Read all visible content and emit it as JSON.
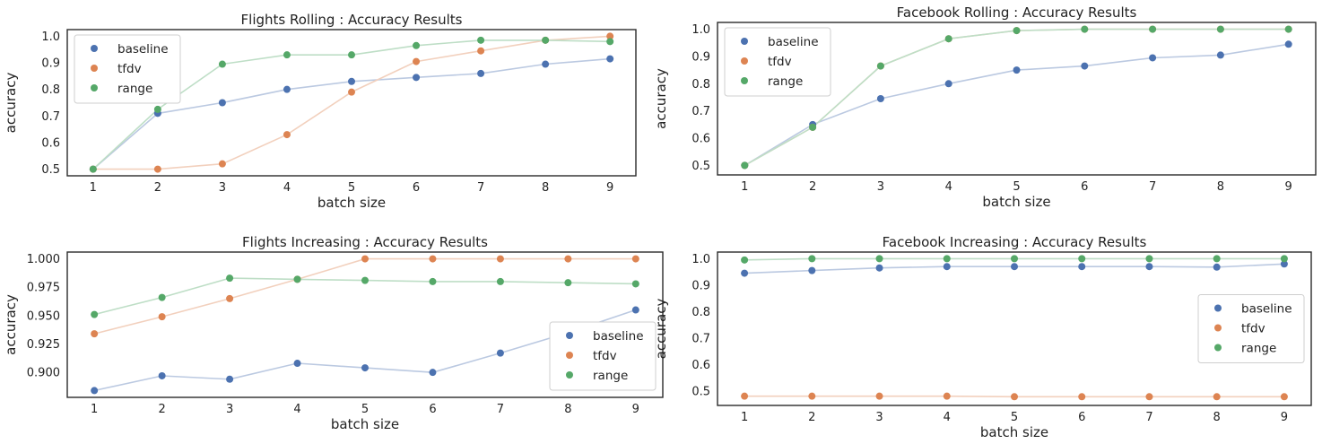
{
  "colors": {
    "baseline": "#4c72b0",
    "tfdv": "#dd8452",
    "range": "#55a868",
    "frame": "#2b2b2b"
  },
  "chart_data": [
    {
      "type": "line",
      "title": "Flights Rolling : Accuracy Results",
      "xlabel": "batch size",
      "ylabel": "accuracy",
      "x": [
        1,
        2,
        3,
        4,
        5,
        6,
        7,
        8,
        9
      ],
      "xlim": [
        0.6,
        9.4
      ],
      "ylim": [
        0.475,
        1.025
      ],
      "yticks": [
        0.5,
        0.6,
        0.7,
        0.8,
        0.9,
        1.0
      ],
      "ytick_labels": [
        "0.5",
        "0.6",
        "0.7",
        "0.8",
        "0.9",
        "1.0"
      ],
      "grid": false,
      "legend_position": "top-left",
      "series": [
        {
          "name": "baseline",
          "values": [
            0.5,
            0.71,
            0.75,
            0.8,
            0.83,
            0.845,
            0.86,
            0.895,
            0.915
          ]
        },
        {
          "name": "tfdv",
          "values": [
            0.5,
            0.5,
            0.52,
            0.63,
            0.79,
            0.905,
            0.945,
            0.985,
            1.0
          ]
        },
        {
          "name": "range",
          "values": [
            0.5,
            0.725,
            0.895,
            0.93,
            0.93,
            0.965,
            0.985,
            0.985,
            0.98
          ]
        }
      ]
    },
    {
      "type": "line",
      "title": "Facebook Rolling : Accuracy Results",
      "xlabel": "batch size",
      "ylabel": "accuracy",
      "x": [
        1,
        2,
        3,
        4,
        5,
        6,
        7,
        8,
        9
      ],
      "xlim": [
        0.6,
        9.4
      ],
      "ylim": [
        0.465,
        1.025
      ],
      "yticks": [
        0.5,
        0.6,
        0.7,
        0.8,
        0.9,
        1.0
      ],
      "ytick_labels": [
        "0.5",
        "0.6",
        "0.7",
        "0.8",
        "0.9",
        "1.0"
      ],
      "grid": false,
      "legend_position": "top-left",
      "series": [
        {
          "name": "baseline",
          "values": [
            0.5,
            0.65,
            0.745,
            0.8,
            0.85,
            0.865,
            0.895,
            0.905,
            0.945
          ]
        },
        {
          "name": "tfdv",
          "values": [
            0.5,
            0.64,
            0.865,
            0.965,
            0.995,
            1.0,
            1.0,
            1.0,
            1.0
          ]
        },
        {
          "name": "range",
          "values": [
            0.5,
            0.64,
            0.865,
            0.965,
            0.995,
            1.0,
            1.0,
            1.0,
            1.0
          ]
        }
      ]
    },
    {
      "type": "line",
      "title": "Flights Increasing : Accuracy Results",
      "xlabel": "batch size",
      "ylabel": "accuracy",
      "x": [
        1,
        2,
        3,
        4,
        5,
        6,
        7,
        8,
        9
      ],
      "xlim": [
        0.6,
        9.4
      ],
      "ylim": [
        0.878,
        1.006
      ],
      "yticks": [
        0.9,
        0.925,
        0.95,
        0.975,
        1.0
      ],
      "ytick_labels": [
        "0.900",
        "0.925",
        "0.950",
        "0.975",
        "1.000"
      ],
      "grid": false,
      "legend_position": "bottom-right",
      "series": [
        {
          "name": "baseline",
          "values": [
            0.884,
            0.897,
            0.894,
            0.908,
            0.904,
            0.9,
            0.917,
            0.935,
            0.955
          ]
        },
        {
          "name": "tfdv",
          "values": [
            0.934,
            0.949,
            0.965,
            0.982,
            1.0,
            1.0,
            1.0,
            1.0,
            1.0
          ]
        },
        {
          "name": "range",
          "values": [
            0.951,
            0.966,
            0.983,
            0.982,
            0.981,
            0.98,
            0.98,
            0.979,
            0.978
          ]
        }
      ]
    },
    {
      "type": "line",
      "title": "Facebook Increasing : Accuracy Results",
      "xlabel": "batch size",
      "ylabel": "accuracy",
      "x": [
        1,
        2,
        3,
        4,
        5,
        6,
        7,
        8,
        9
      ],
      "xlim": [
        0.6,
        9.4
      ],
      "ylim": [
        0.445,
        1.025
      ],
      "yticks": [
        0.5,
        0.6,
        0.7,
        0.8,
        0.9,
        1.0
      ],
      "ytick_labels": [
        "0.5",
        "0.6",
        "0.7",
        "0.8",
        "0.9",
        "1.0"
      ],
      "grid": false,
      "legend_position": "center-right",
      "series": [
        {
          "name": "baseline",
          "values": [
            0.945,
            0.955,
            0.965,
            0.97,
            0.97,
            0.97,
            0.97,
            0.968,
            0.98
          ]
        },
        {
          "name": "tfdv",
          "values": [
            0.48,
            0.48,
            0.48,
            0.48,
            0.478,
            0.478,
            0.478,
            0.478,
            0.478
          ]
        },
        {
          "name": "range",
          "values": [
            0.995,
            1.0,
            1.0,
            1.0,
            1.0,
            1.0,
            1.0,
            1.0,
            1.0
          ]
        }
      ]
    }
  ]
}
